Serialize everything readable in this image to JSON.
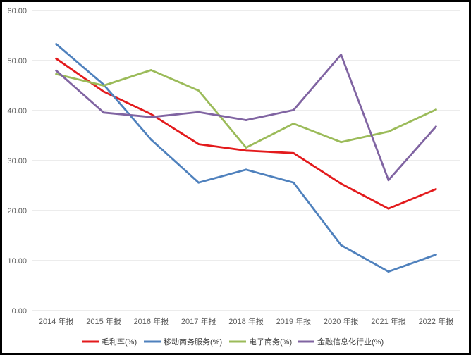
{
  "chart_data": {
    "type": "line",
    "categories": [
      "2014 年报",
      "2015 年报",
      "2016 年报",
      "2017 年报",
      "2018 年报",
      "2019 年报",
      "2020 年报",
      "2021 年报",
      "2022 年报"
    ],
    "ylim": [
      0,
      60
    ],
    "yticks": [
      "0.00",
      "10.00",
      "20.00",
      "30.00",
      "40.00",
      "50.00",
      "60.00"
    ],
    "grid": true,
    "legend_position": "bottom",
    "series": [
      {
        "name": "毛利率(%)",
        "color": "#e31a1c",
        "values": [
          50.4,
          43.8,
          39.3,
          33.3,
          32.0,
          31.5,
          25.4,
          20.4,
          24.3
        ]
      },
      {
        "name": "移动商务服务(%)",
        "color": "#4f81bd",
        "values": [
          53.3,
          45.2,
          34.2,
          25.6,
          28.2,
          25.6,
          13.1,
          7.8,
          11.2
        ]
      },
      {
        "name": "电子商务(%)",
        "color": "#9bbb59",
        "values": [
          47.3,
          45.0,
          48.1,
          44.0,
          32.6,
          37.4,
          33.7,
          35.8,
          40.2
        ]
      },
      {
        "name": "金融信息化行业(%)",
        "color": "#8064a2",
        "values": [
          48.0,
          39.6,
          38.7,
          39.7,
          38.1,
          40.1,
          51.2,
          26.1,
          36.8
        ]
      }
    ]
  }
}
